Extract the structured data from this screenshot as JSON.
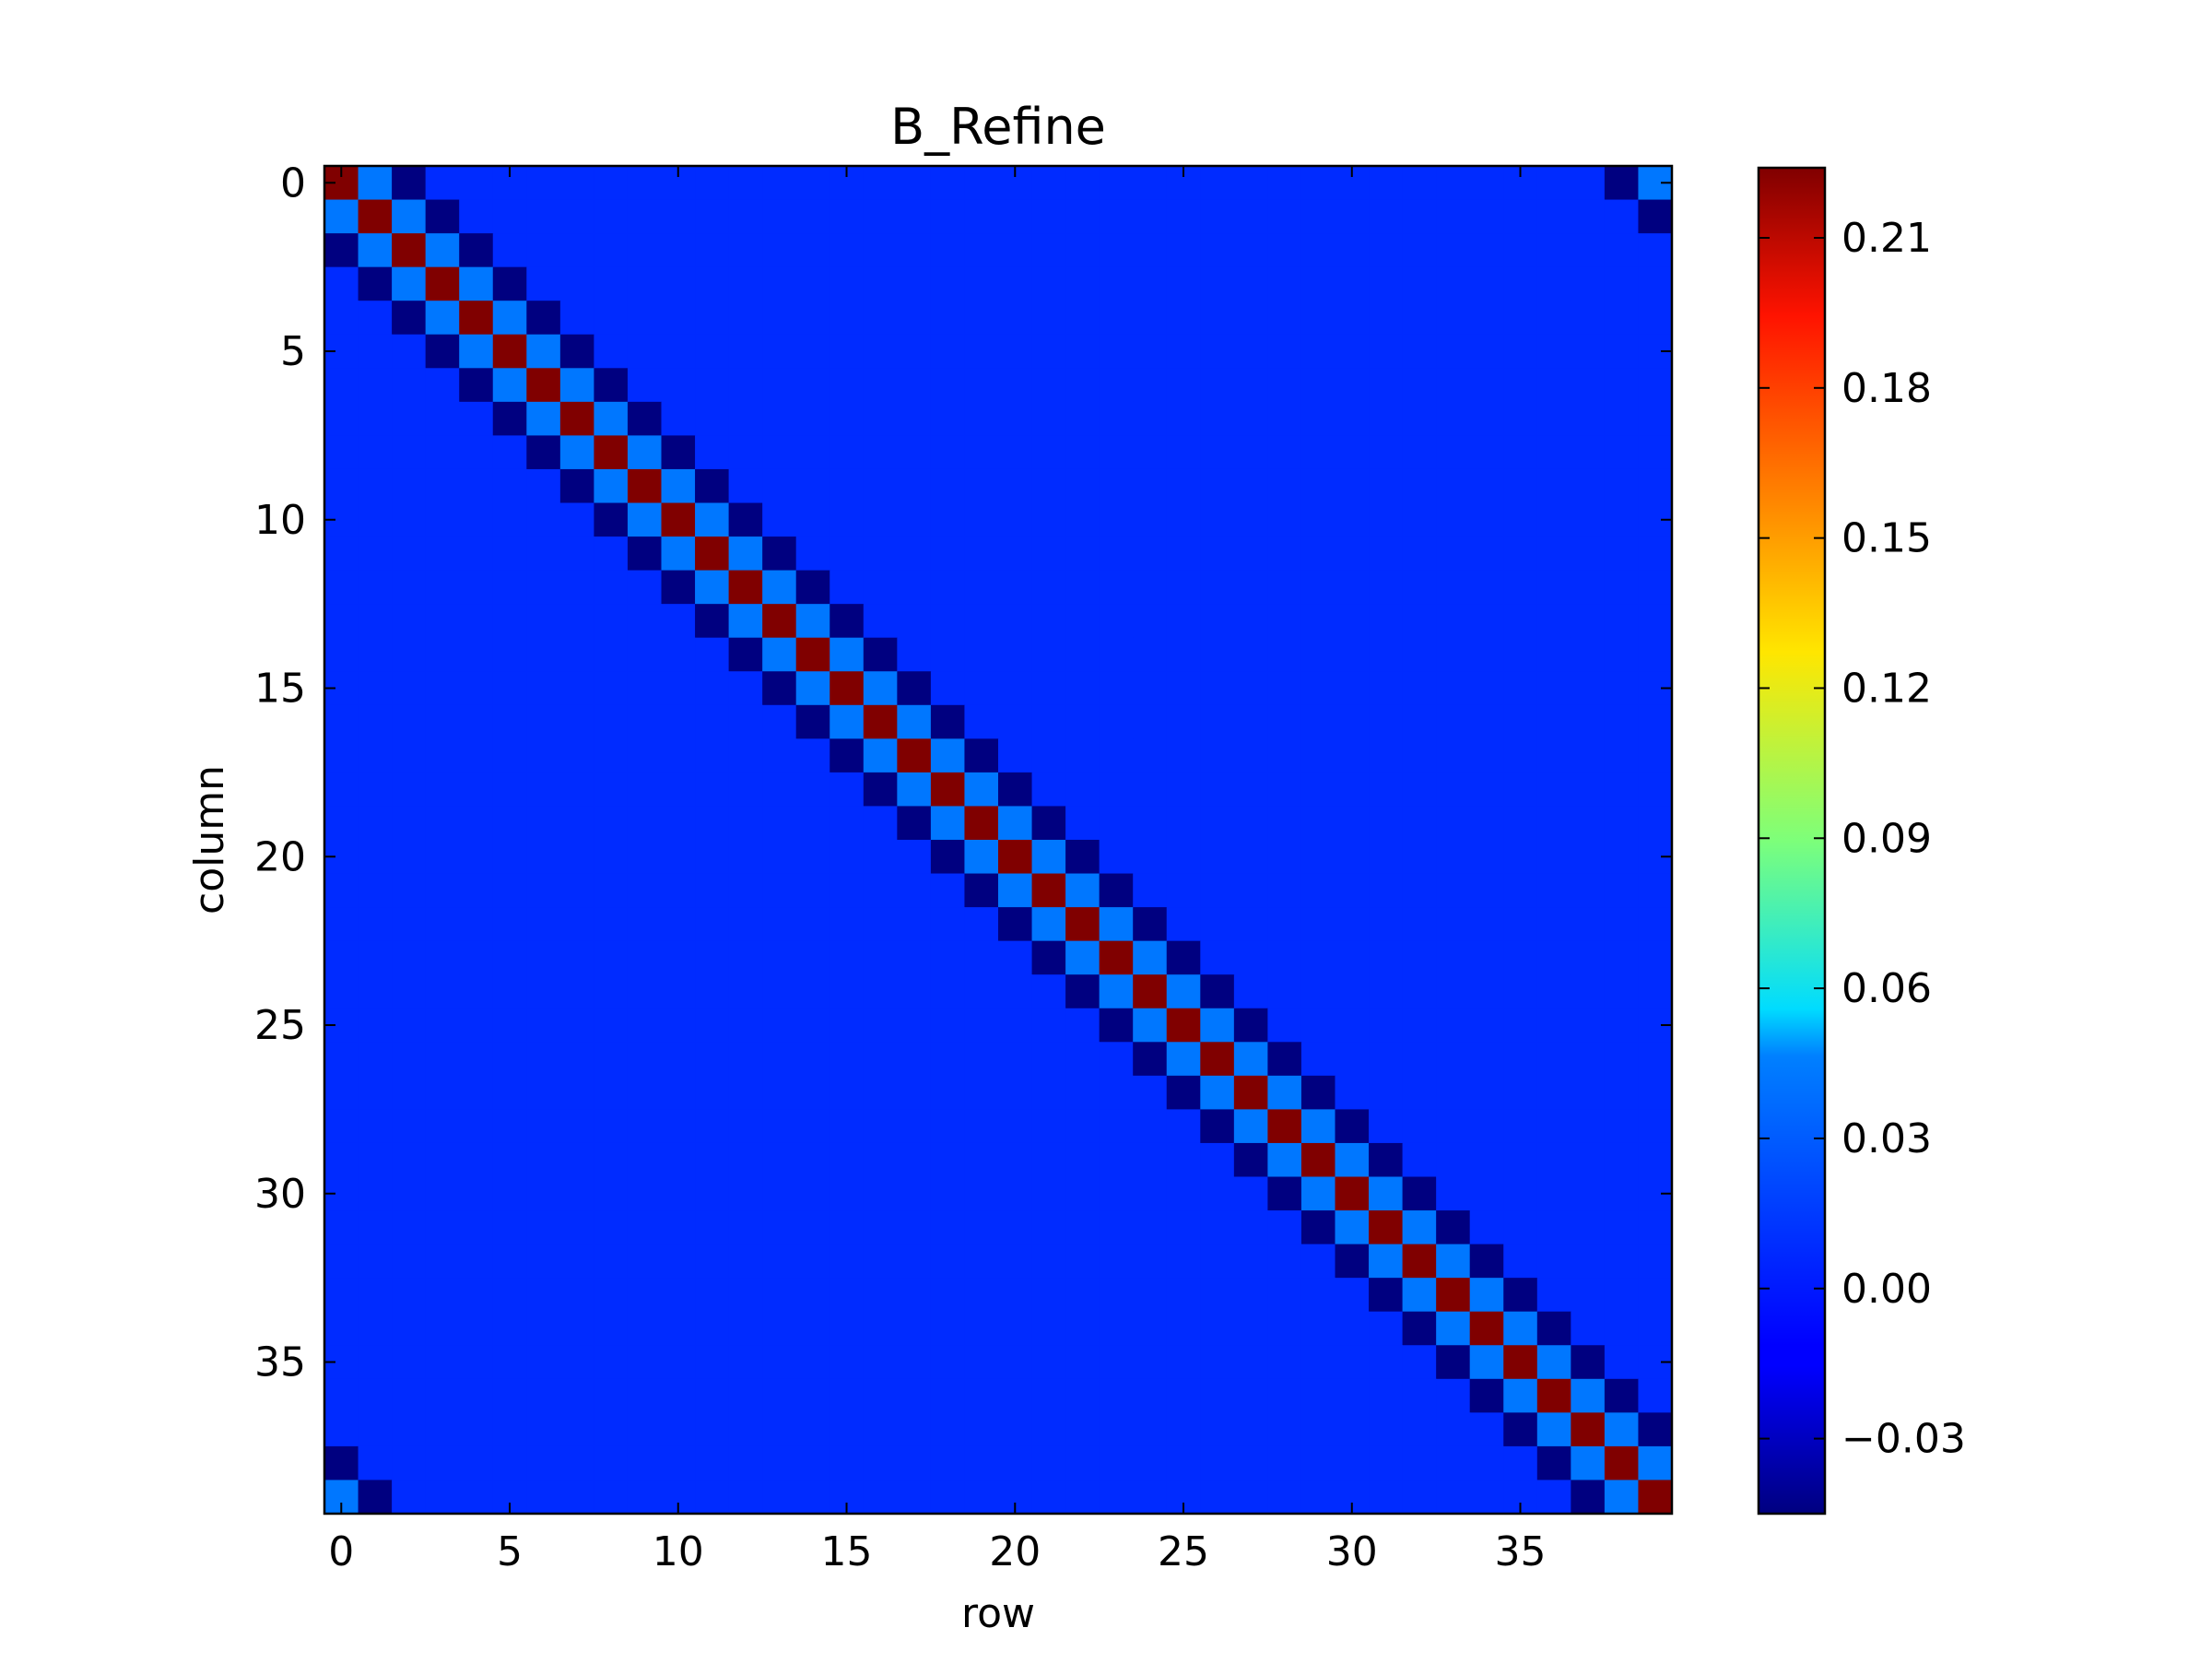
{
  "chart_data": {
    "type": "heatmap",
    "title": "B_Refine",
    "xlabel": "row",
    "ylabel": "column",
    "size": 40,
    "x_ticks": [
      0,
      5,
      10,
      15,
      20,
      25,
      30,
      35
    ],
    "y_ticks": [
      0,
      5,
      10,
      15,
      20,
      25,
      30,
      35
    ],
    "colormap": "jet",
    "vmin": -0.045,
    "vmax": 0.224,
    "colorbar_ticks": [
      -0.03,
      0.0,
      0.03,
      0.06,
      0.09,
      0.12,
      0.15,
      0.18,
      0.21
    ],
    "colorbar_tick_labels": [
      "−0.03",
      "0.00",
      "0.03",
      "0.06",
      "0.09",
      "0.12",
      "0.15",
      "0.18",
      "0.21"
    ],
    "diagonal_value": 0.224,
    "off_by_one_value": 0.02,
    "off_by_two_value": -0.045,
    "background_value": 0.0,
    "periodic_wraparound": true,
    "legend": "colorbar right",
    "grid": false
  }
}
